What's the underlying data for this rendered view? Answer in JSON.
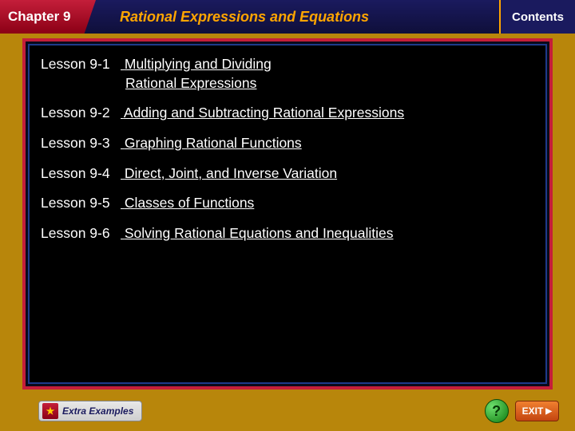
{
  "header": {
    "chapter_label": "Chapter 9",
    "chapter_title": "Rational Expressions and Equations",
    "contents_label": "Contents"
  },
  "lessons": [
    {
      "label": "Lesson 9-1",
      "title": "Multiplying and Dividing",
      "title_cont": "Rational Expressions"
    },
    {
      "label": "Lesson 9-2",
      "title": "Adding and Subtracting Rational Expressions",
      "title_cont": ""
    },
    {
      "label": "Lesson 9-3",
      "title": "Graphing Rational Functions",
      "title_cont": ""
    },
    {
      "label": "Lesson 9-4",
      "title": "Direct, Joint, and Inverse Variation",
      "title_cont": ""
    },
    {
      "label": "Lesson 9-5",
      "title": "Classes of Functions",
      "title_cont": ""
    },
    {
      "label": "Lesson 9-6",
      "title": "Solving Rational Equations and Inequalities",
      "title_cont": ""
    }
  ],
  "footer": {
    "extra_examples": "Extra Examples",
    "extra_icon_glyph": "★",
    "help_glyph": "?",
    "exit_label": "EXIT",
    "exit_arrow": "▶"
  },
  "colors": {
    "page_bg": "#b8860b",
    "header_bg": "#1a1a5e",
    "chapter_red": "#c41e3a",
    "title_orange": "#ffa500",
    "frame_red": "#c41e3a",
    "frame_blue": "#1e3a8a",
    "content_bg": "#000000",
    "lesson_text": "#ffffff",
    "help_green": "#0f7a0f",
    "exit_orange": "#c44510"
  }
}
